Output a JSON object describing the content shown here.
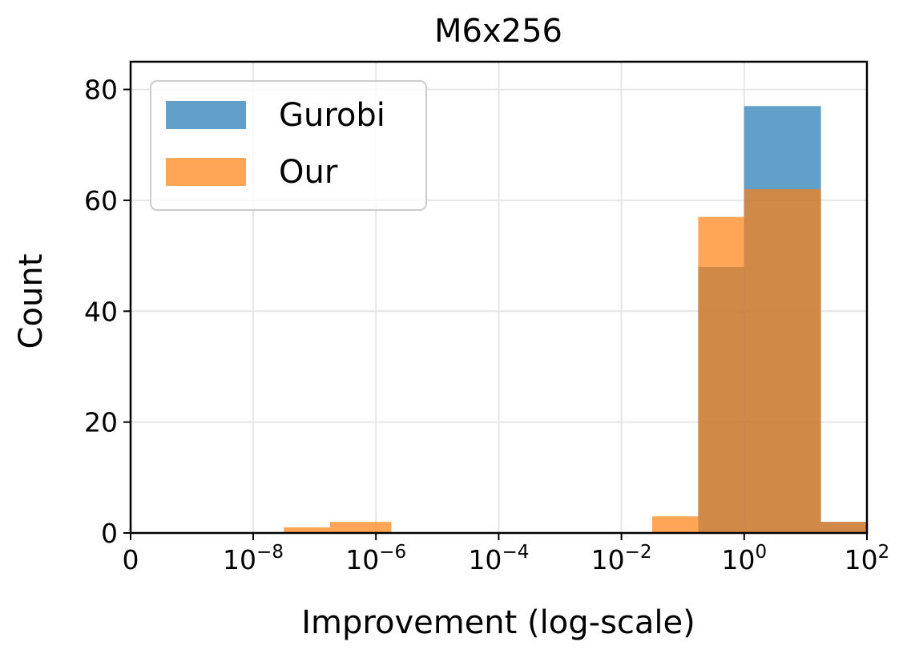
{
  "chart_data": {
    "type": "bar",
    "title": "M6x256",
    "xlabel": "Improvement (log-scale)",
    "ylabel": "Count",
    "xscale": "symlog",
    "xlim": [
      0,
      100
    ],
    "ylim": [
      0,
      85
    ],
    "grid": true,
    "legend_position": "top-left",
    "x_tick_labels": [
      {
        "value": 0,
        "base": "0",
        "exp": ""
      },
      {
        "value": 1e-08,
        "base": "10",
        "exp": "−8"
      },
      {
        "value": 1e-06,
        "base": "10",
        "exp": "−6"
      },
      {
        "value": 0.0001,
        "base": "10",
        "exp": "−4"
      },
      {
        "value": 0.01,
        "base": "10",
        "exp": "−2"
      },
      {
        "value": 1,
        "base": "10",
        "exp": "0"
      },
      {
        "value": 100,
        "base": "10",
        "exp": "2"
      }
    ],
    "y_ticks": [
      0,
      20,
      40,
      60,
      80
    ],
    "series": [
      {
        "name": "Gurobi",
        "color": "#1f77b4",
        "opacity": 0.7,
        "bins": [
          {
            "x0": 0.2,
            "x1": 0.1778,
            "x1_real": 1.0,
            "count": 0
          }
        ]
      },
      {
        "name": "Our",
        "color": "#ff7f0e",
        "opacity": 0.7,
        "bins": []
      }
    ]
  },
  "series_bins": {
    "Gurobi": [
      {
        "x0": 0.178,
        "x1": 1.0,
        "count": 48
      },
      {
        "x0": 1.0,
        "x1": 17.8,
        "count": 77
      },
      {
        "x0": 17.8,
        "x1": 100,
        "count": 2
      }
    ],
    "Our": [
      {
        "x0": 3.16e-08,
        "x1": 1.78e-07,
        "count": 1
      },
      {
        "x0": 1.78e-07,
        "x1": 1.78e-06,
        "count": 2
      },
      {
        "x0": 0.0316,
        "x1": 0.178,
        "count": 3
      },
      {
        "x0": 0.178,
        "x1": 1.0,
        "count": 57
      },
      {
        "x0": 1.0,
        "x1": 17.8,
        "count": 62
      },
      {
        "x0": 17.8,
        "x1": 100,
        "count": 2
      }
    ]
  }
}
